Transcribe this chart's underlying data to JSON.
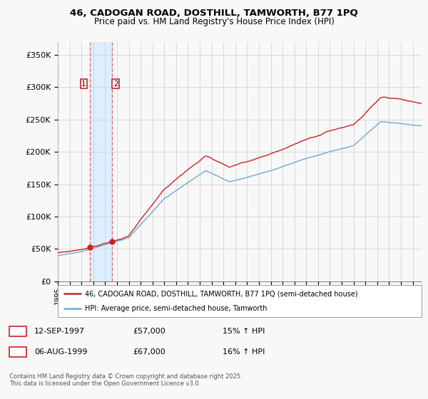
{
  "title1": "46, CADOGAN ROAD, DOSTHILL, TAMWORTH, B77 1PQ",
  "title2": "Price paid vs. HM Land Registry's House Price Index (HPI)",
  "legend_line1": "46, CADOGAN ROAD, DOSTHILL, TAMWORTH, B77 1PQ (semi-detached house)",
  "legend_line2": "HPI: Average price, semi-detached house, Tamworth",
  "purchase1_date": "12-SEP-1997",
  "purchase1_price": 57000,
  "purchase1_hpi": "15% ↑ HPI",
  "purchase1_x": 1997.7,
  "purchase2_date": "06-AUG-1999",
  "purchase2_price": 67000,
  "purchase2_hpi": "16% ↑ HPI",
  "purchase2_x": 1999.6,
  "footer": "Contains HM Land Registry data © Crown copyright and database right 2025.\nThis data is licensed under the Open Government Licence v3.0.",
  "hpi_color": "#6aaad4",
  "price_color": "#cc2222",
  "vline_color": "#e87070",
  "shade_color": "#ddeeff",
  "background_color": "#f8f8f8",
  "ylim": [
    0,
    370000
  ],
  "yticks": [
    0,
    50000,
    100000,
    150000,
    200000,
    250000,
    300000,
    350000
  ],
  "xlim_start": 1995.0,
  "xlim_end": 2025.75
}
